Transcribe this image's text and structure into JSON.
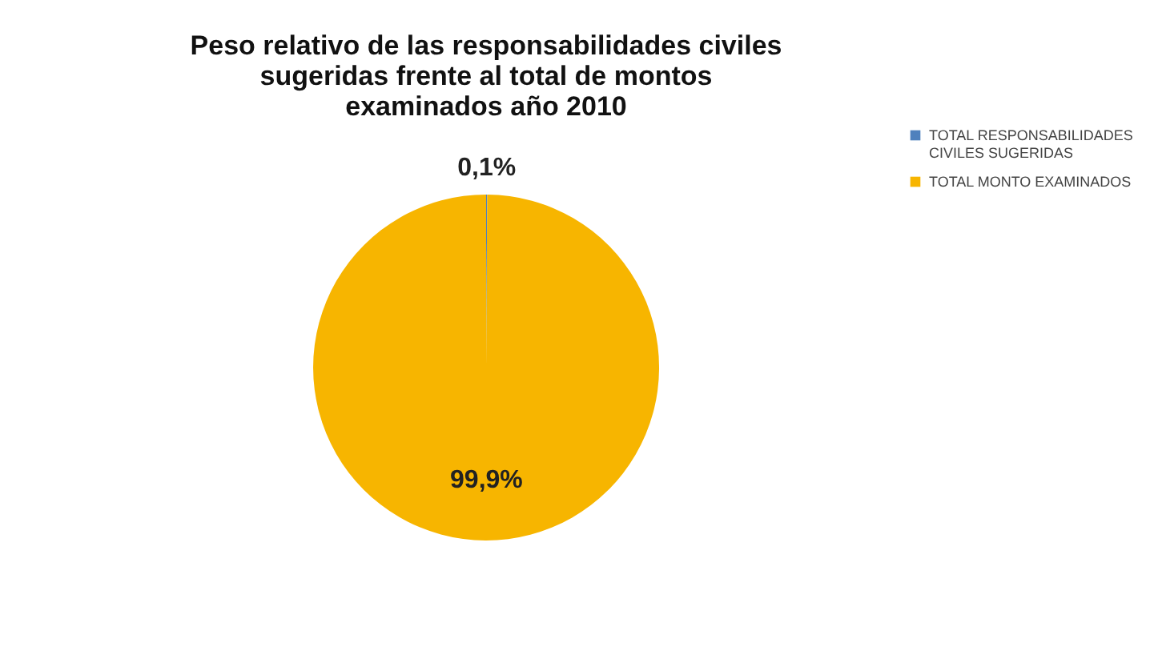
{
  "chart_data": {
    "type": "pie",
    "title": [
      "Peso relativo de las responsabilidades civiles",
      "sugeridas frente al total de montos",
      "examinados año 2010"
    ],
    "categories": [
      "TOTAL RESPONSABILIDADES CIVILES SUGERIDAS",
      "TOTAL MONTO EXAMINADOS"
    ],
    "values": [
      0.1,
      99.9
    ],
    "colors": [
      "#4f81bd",
      "#f7b500"
    ],
    "value_labels": [
      "0,1%",
      "99,9%"
    ],
    "legend": "right"
  }
}
